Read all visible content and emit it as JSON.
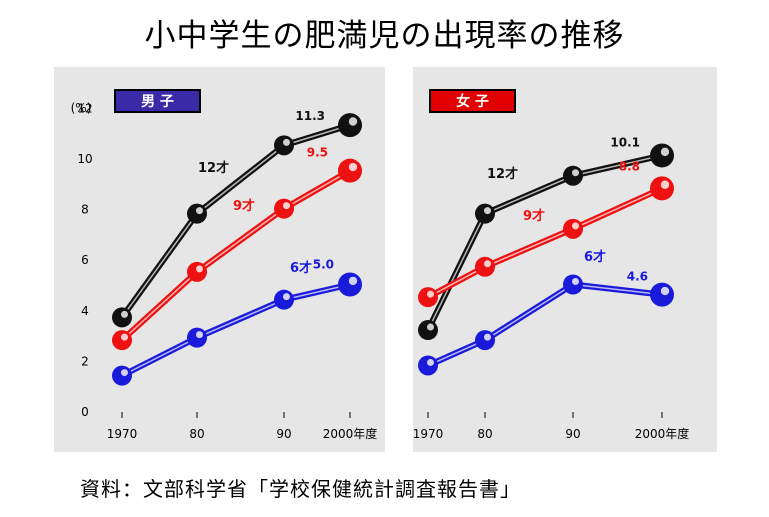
{
  "title": "小中学生の肥満児の出現率の推移",
  "source": "資料：文部科学省「学校保健統計調査報告書」",
  "chart_data": [
    {
      "type": "line",
      "legend_label": "男 子",
      "legend_color": "#3a2aa8",
      "y_unit": "(%)",
      "y_ticks": [
        "0",
        "2",
        "4",
        "6",
        "8",
        "10",
        "12"
      ],
      "ylim": [
        0,
        12
      ],
      "x_ticks": [
        "1970",
        "80",
        "90",
        "2000年度"
      ],
      "x": [
        1970,
        1980,
        1990,
        2000
      ],
      "series": [
        {
          "name": "12才",
          "color": "#111111",
          "values": [
            3.7,
            7.8,
            10.5,
            11.3
          ],
          "end_label": "11.3"
        },
        {
          "name": "9才",
          "color": "#ee1111",
          "values": [
            2.8,
            5.5,
            8.0,
            9.5
          ],
          "end_label": "9.5"
        },
        {
          "name": "6才",
          "color": "#1a1adb",
          "values": [
            1.4,
            2.9,
            4.4,
            5.0
          ],
          "end_label": "5.0"
        }
      ]
    },
    {
      "type": "line",
      "legend_label": "女 子",
      "legend_color": "#e00000",
      "y_unit": "",
      "y_ticks": [],
      "ylim": [
        0,
        12
      ],
      "x_ticks": [
        "1970",
        "80",
        "90",
        "2000年度"
      ],
      "x": [
        1970,
        1980,
        1990,
        2000
      ],
      "series": [
        {
          "name": "12才",
          "color": "#111111",
          "values": [
            3.2,
            7.8,
            9.3,
            10.1
          ],
          "end_label": "10.1"
        },
        {
          "name": "9才",
          "color": "#ee1111",
          "values": [
            4.5,
            5.7,
            7.2,
            8.8
          ],
          "end_label": "8.8"
        },
        {
          "name": "6才",
          "color": "#1a1adb",
          "values": [
            1.8,
            2.8,
            5.0,
            4.6
          ],
          "end_label": "4.6"
        }
      ]
    }
  ]
}
